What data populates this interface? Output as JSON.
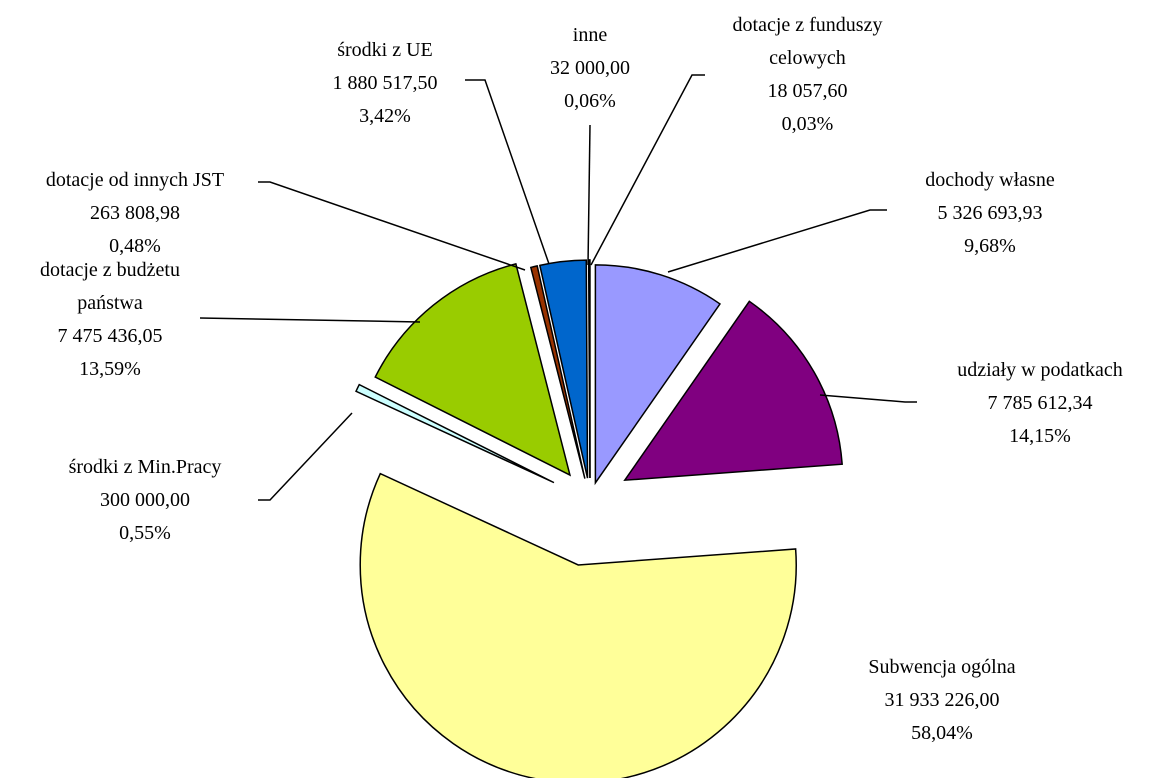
{
  "chart_data": {
    "type": "pie",
    "categories": [
      "dochody własne",
      "udziały w podatkach",
      "Subwencja ogólna",
      "środki z Min.Pracy",
      "dotacje z budżetu państwa",
      "dotacje od innych JST",
      "środki z UE",
      "inne",
      "dotacje z funduszy celowych"
    ],
    "values": [
      5326693.93,
      7785612.34,
      31933226.0,
      300000.0,
      7475436.05,
      263808.98,
      1880517.5,
      32000.0,
      18057.6
    ],
    "value_labels": [
      "5 326 693,93",
      "7 785 612,34",
      "31 933 226,00",
      "300 000,00",
      "7 475 436,05",
      "263 808,98",
      "1 880 517,50",
      "32 000,00",
      "18 057,60"
    ],
    "percentages": [
      9.68,
      14.15,
      58.04,
      0.55,
      13.59,
      0.48,
      3.42,
      0.06,
      0.03
    ],
    "percentage_labels": [
      "9,68%",
      "14,15%",
      "58,04%",
      "0,55%",
      "13,59%",
      "0,48%",
      "3,42%",
      "0,06%",
      "0,03%"
    ],
    "colors": [
      "#9999ff",
      "#800080",
      "#ffff99",
      "#ccffff",
      "#99cc00",
      "#993300",
      "#0066cc",
      "#cc99ff",
      "#ffcc99"
    ]
  }
}
